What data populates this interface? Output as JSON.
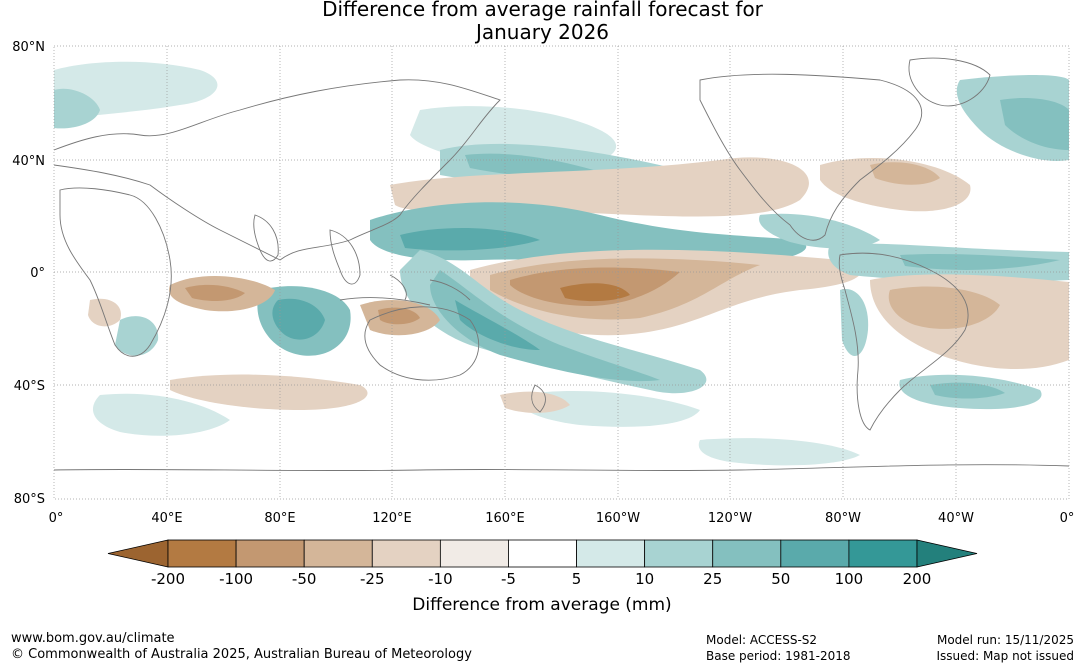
{
  "title": {
    "line1": "Difference from average rainfall forecast for",
    "line2": "January 2026"
  },
  "map": {
    "lat_labels": [
      "80°N",
      "40°N",
      "0°",
      "40°S",
      "80°S"
    ],
    "lon_labels": [
      "0°",
      "40°E",
      "80°E",
      "120°E",
      "160°E",
      "160°W",
      "120°W",
      "80°W",
      "40°W",
      "0°"
    ],
    "anomaly_regions": [
      {
        "name": "central-pacific-dry-core",
        "class": "-100"
      },
      {
        "name": "equatorial-pacific-dry-band",
        "class": "-25"
      },
      {
        "name": "maritime-continent-wet",
        "class": "50"
      },
      {
        "name": "south-pacific-convergence-wet",
        "class": "25"
      },
      {
        "name": "north-pacific-wet",
        "class": "25"
      },
      {
        "name": "indian-ocean-dry",
        "class": "-50"
      },
      {
        "name": "brazil-dry",
        "class": "-25"
      },
      {
        "name": "tropical-atlantic-wet",
        "class": "25"
      },
      {
        "name": "north-atlantic-wet",
        "class": "10"
      },
      {
        "name": "southern-ocean-wet",
        "class": "10"
      }
    ]
  },
  "legend": {
    "ticks": [
      "-200",
      "-100",
      "-50",
      "-25",
      "-10",
      "-5",
      "5",
      "10",
      "25",
      "50",
      "100",
      "200"
    ],
    "colors": [
      "#9c6430",
      "#b37a42",
      "#c39871",
      "#d4b699",
      "#e4d2c2",
      "#f1ebe6",
      "#ffffff",
      "#d4e9e8",
      "#a8d3d2",
      "#84c0bf",
      "#5aaaab",
      "#349897",
      "#23807c"
    ],
    "label": "Difference from average (mm)"
  },
  "footer": {
    "website": "www.bom.gov.au/climate",
    "copyright": "© Commonwealth of Australia 2025, Australian Bureau of Meteorology",
    "model": "Model: ACCESS-S2",
    "base_period": "Base period: 1981-2018",
    "model_run": "Model run: 15/11/2025",
    "issued": "Issued: Map not issued"
  }
}
